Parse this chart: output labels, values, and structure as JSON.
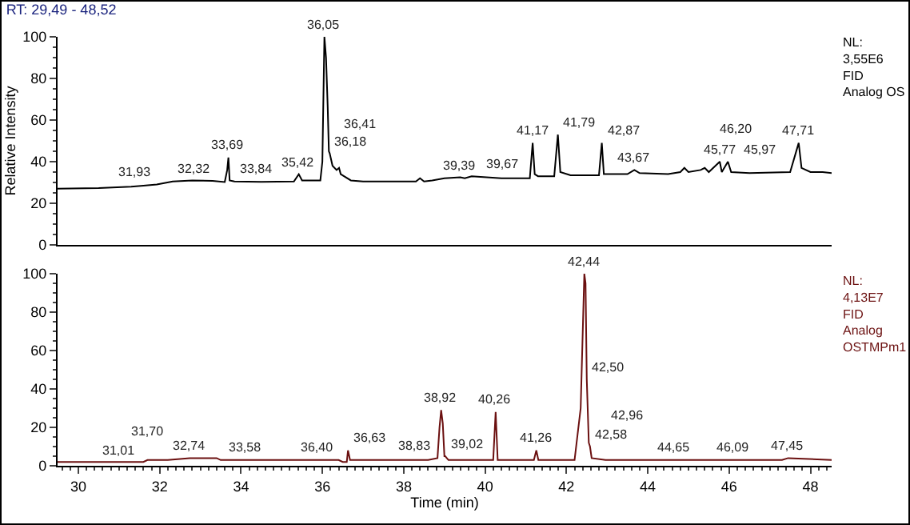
{
  "chart_data": [
    {
      "type": "line",
      "title": "RT: 29,49 - 48,52",
      "ylabel": "Relative Intensity",
      "xlim": [
        29.49,
        48.52
      ],
      "ylim": [
        0,
        100
      ],
      "yticks": [
        0,
        20,
        40,
        60,
        80,
        100
      ],
      "xticks": [
        30,
        32,
        34,
        36,
        38,
        40,
        42,
        44,
        46,
        48
      ],
      "tick_labels": "y",
      "grid": false,
      "series": [
        {
          "color": "#000000",
          "x": [
            29.49,
            30.5,
            31.3,
            31.6,
            31.93,
            32.32,
            32.8,
            33.3,
            33.6,
            33.66,
            33.69,
            33.72,
            33.84,
            34.5,
            35.3,
            35.42,
            35.5,
            35.95,
            36.0,
            36.05,
            36.09,
            36.13,
            36.16,
            36.18,
            36.25,
            36.35,
            36.41,
            36.45,
            36.7,
            37.0,
            38.3,
            38.4,
            38.5,
            38.7,
            39.0,
            39.39,
            39.5,
            39.67,
            40.4,
            41.1,
            41.17,
            41.22,
            41.3,
            41.7,
            41.79,
            41.85,
            42.1,
            42.8,
            42.87,
            42.92,
            43.5,
            43.67,
            43.8,
            44.5,
            44.8,
            44.9,
            45.0,
            45.3,
            45.4,
            45.5,
            45.77,
            45.82,
            45.97,
            46.05,
            46.5,
            47.5,
            47.71,
            47.78,
            48.0,
            48.3,
            48.52
          ],
          "values": [
            27,
            27.3,
            28,
            28.5,
            29,
            30.5,
            31,
            30.8,
            30.2,
            36,
            42,
            31,
            30.5,
            30.3,
            30.5,
            34,
            31,
            31,
            40,
            100,
            90,
            67,
            45,
            44,
            38,
            36,
            37,
            34,
            31,
            30.5,
            30.5,
            32,
            30.5,
            31,
            32,
            32.5,
            32,
            33,
            32,
            32,
            49,
            34,
            33,
            33,
            53,
            35,
            33.5,
            33.5,
            49,
            34,
            34,
            36,
            34.5,
            34,
            35,
            37,
            35,
            36,
            37,
            35,
            40,
            35,
            40,
            35,
            34.5,
            35,
            49,
            37,
            35,
            35,
            34.5
          ]
        }
      ],
      "annotations": [
        {
          "text": "31,93",
          "x": 31.93,
          "y": 29
        },
        {
          "text": "32,32",
          "x": 32.32,
          "y": 30.5
        },
        {
          "text": "33,69",
          "x": 33.69,
          "y": 42
        },
        {
          "text": "33,84",
          "x": 33.84,
          "y": 30.5
        },
        {
          "text": "35,42",
          "x": 35.42,
          "y": 34
        },
        {
          "text": "36,05",
          "x": 36.05,
          "y": 100
        },
        {
          "text": "36,18",
          "x": 36.18,
          "y": 44
        },
        {
          "text": "36,41",
          "x": 36.41,
          "y": 37
        },
        {
          "text": "39,39",
          "x": 39.39,
          "y": 32.5
        },
        {
          "text": "39,67",
          "x": 39.67,
          "y": 33
        },
        {
          "text": "41,17",
          "x": 41.17,
          "y": 49
        },
        {
          "text": "41,79",
          "x": 41.79,
          "y": 53
        },
        {
          "text": "42,87",
          "x": 42.87,
          "y": 49
        },
        {
          "text": "43,67",
          "x": 43.67,
          "y": 36
        },
        {
          "text": "45,77",
          "x": 45.77,
          "y": 40
        },
        {
          "text": "45,97",
          "x": 45.97,
          "y": 40
        },
        {
          "text": "46,20",
          "x": 46.2,
          "y": 34.5
        },
        {
          "text": "47,71",
          "x": 47.71,
          "y": 49
        },
        "NL:\n3,55E6\nFID\nAnalog OS"
      ]
    },
    {
      "type": "line",
      "xlabel": "Time (min)",
      "xlim": [
        29.49,
        48.52
      ],
      "ylim": [
        0,
        100
      ],
      "yticks": [
        0,
        20,
        40,
        60,
        80,
        100
      ],
      "xticks": [
        30,
        32,
        34,
        36,
        38,
        40,
        42,
        44,
        46,
        48
      ],
      "grid": false,
      "series": [
        {
          "color": "#6b1010",
          "x": [
            29.49,
            31.6,
            31.7,
            32.2,
            32.74,
            33.4,
            33.5,
            36.4,
            36.5,
            36.6,
            36.63,
            36.68,
            38.6,
            38.83,
            38.88,
            38.92,
            38.96,
            39.0,
            39.02,
            39.1,
            40.2,
            40.26,
            40.31,
            41.2,
            41.26,
            41.31,
            42.2,
            42.35,
            42.44,
            42.47,
            42.5,
            42.55,
            42.58,
            42.62,
            42.96,
            44.65,
            46.09,
            47.3,
            47.45,
            48.52
          ],
          "values": [
            2,
            2,
            3,
            3,
            4,
            4,
            3,
            3,
            2,
            2,
            8,
            3,
            3,
            4,
            20,
            29,
            22,
            5,
            5,
            3,
            3,
            28,
            3,
            3,
            8,
            3,
            3,
            30,
            100,
            95,
            45,
            12,
            10,
            4,
            3,
            3,
            3,
            3,
            4,
            3
          ]
        }
      ],
      "annotations": [
        {
          "text": "31,01",
          "x": 31.01,
          "y": 2
        },
        {
          "text": "31,70",
          "x": 31.7,
          "y": 3
        },
        {
          "text": "32,74",
          "x": 32.74,
          "y": 4
        },
        {
          "text": "33,58",
          "x": 33.58,
          "y": 3
        },
        {
          "text": "36,40",
          "x": 36.4,
          "y": 3
        },
        {
          "text": "36,63",
          "x": 36.63,
          "y": 8
        },
        {
          "text": "38,83",
          "x": 38.83,
          "y": 4
        },
        {
          "text": "38,92",
          "x": 38.92,
          "y": 29
        },
        {
          "text": "39,02",
          "x": 39.02,
          "y": 5
        },
        {
          "text": "40,26",
          "x": 40.26,
          "y": 28
        },
        {
          "text": "41,26",
          "x": 41.26,
          "y": 8
        },
        {
          "text": "42,44",
          "x": 42.44,
          "y": 100
        },
        {
          "text": "42,50",
          "x": 42.5,
          "y": 45
        },
        {
          "text": "42,58",
          "x": 42.58,
          "y": 10
        },
        {
          "text": "42,96",
          "x": 42.96,
          "y": 3
        },
        {
          "text": "44,65",
          "x": 44.65,
          "y": 3
        },
        {
          "text": "46,09",
          "x": 46.09,
          "y": 3
        },
        {
          "text": "47,45",
          "x": 47.45,
          "y": 4
        },
        "NL:\n4,13E7\nFID\nAnalog\nOSTMPm1"
      ]
    }
  ]
}
